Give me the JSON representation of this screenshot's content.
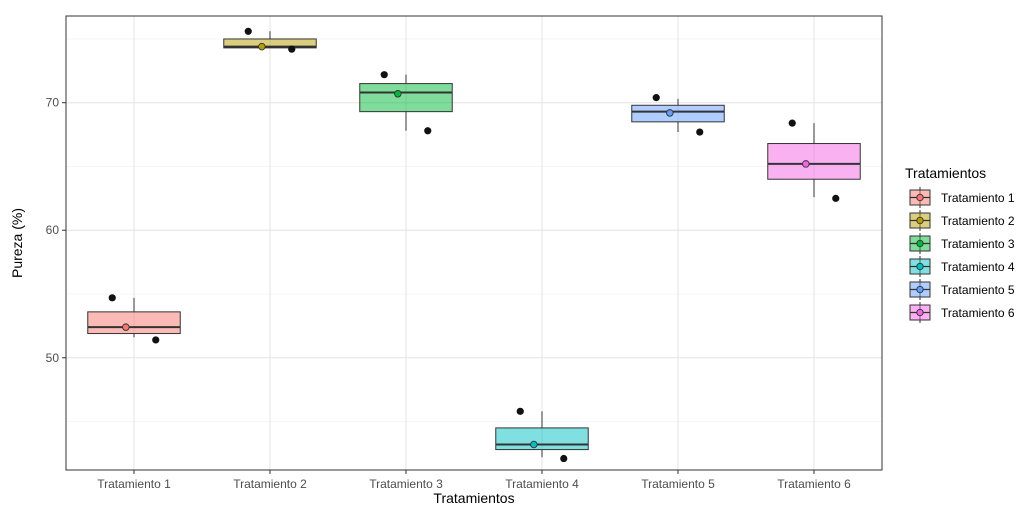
{
  "chart_data": {
    "type": "box",
    "title": "",
    "xlabel": "Tratamientos",
    "ylabel": "Pureza (%)",
    "categories": [
      "Tratamiento 1",
      "Tratamiento 2",
      "Tratamiento 3",
      "Tratamiento 4",
      "Tratamiento 5",
      "Tratamiento 6"
    ],
    "ylim": [
      41.2,
      76.8
    ],
    "yticks": [
      50,
      60,
      70
    ],
    "y_minor_ticks": [
      45,
      55,
      65,
      75
    ],
    "grid": true,
    "legend": {
      "title": "Tratamientos",
      "position": "right"
    },
    "series": [
      {
        "name": "Tratamiento 1",
        "color": "#F8766D",
        "min": 51.6,
        "q1": 51.9,
        "median": 52.4,
        "q3": 53.6,
        "max": 54.7,
        "mean": 52.4,
        "points": [
          54.7,
          51.4
        ]
      },
      {
        "name": "Tratamiento 2",
        "color": "#B79F00",
        "min": 74.3,
        "q1": 74.3,
        "median": 74.4,
        "q3": 75.0,
        "max": 75.6,
        "mean": 74.4,
        "points": [
          75.6,
          74.2
        ]
      },
      {
        "name": "Tratamiento 3",
        "color": "#00BA38",
        "min": 67.8,
        "q1": 69.3,
        "median": 70.8,
        "q3": 71.5,
        "max": 72.2,
        "mean": 70.7,
        "points": [
          72.2,
          67.8
        ]
      },
      {
        "name": "Tratamiento 4",
        "color": "#00BFC4",
        "min": 42.2,
        "q1": 42.8,
        "median": 43.2,
        "q3": 44.5,
        "max": 45.8,
        "mean": 43.2,
        "points": [
          45.8,
          42.1
        ]
      },
      {
        "name": "Tratamiento 5",
        "color": "#619CFF",
        "min": 67.7,
        "q1": 68.5,
        "median": 69.3,
        "q3": 69.8,
        "max": 70.3,
        "mean": 69.2,
        "points": [
          70.4,
          67.7
        ]
      },
      {
        "name": "Tratamiento 6",
        "color": "#F564E3",
        "min": 62.6,
        "q1": 64.0,
        "median": 65.2,
        "q3": 66.8,
        "max": 68.4,
        "mean": 65.2,
        "points": [
          68.4,
          62.5
        ]
      }
    ]
  }
}
